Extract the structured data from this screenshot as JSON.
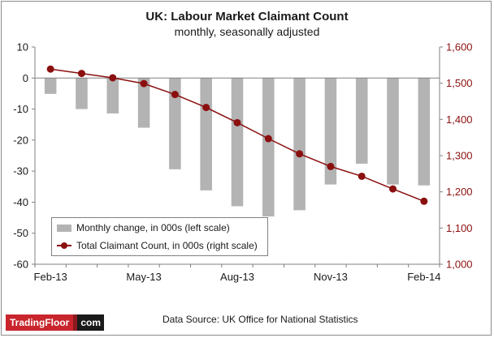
{
  "colors": {
    "bar": "#b3b3b3",
    "line": "#8b0f0f",
    "right_axis": "#8b0f0f",
    "left_axis": "#1a1a1a",
    "logo_red": "#c8252c",
    "logo_dark": "#1a1a1a"
  },
  "chart_data": {
    "type": "bar",
    "title": "UK: Labour Market Claimant Count",
    "subtitle": "monthly, seasonally adjusted",
    "x": [
      "Feb-13",
      "Mar-13",
      "Apr-13",
      "May-13",
      "Jun-13",
      "Jul-13",
      "Aug-13",
      "Sep-13",
      "Oct-13",
      "Nov-13",
      "Dec-13",
      "Jan-14",
      "Feb-14"
    ],
    "x_tick_labels": [
      "Feb-13",
      "May-13",
      "Aug-13",
      "Nov-13",
      "Feb-14"
    ],
    "series": [
      {
        "name": "Monthly change, in 000s (left scale)",
        "type": "bar",
        "axis": "left",
        "values": [
          -5.1,
          -10.0,
          -11.4,
          -16.0,
          -29.4,
          -36.2,
          -41.3,
          -44.6,
          -42.6,
          -34.3,
          -27.6,
          -34.3,
          -34.6
        ]
      },
      {
        "name": "Total Claimant Count, in 000s (right scale)",
        "type": "line",
        "axis": "right",
        "values": [
          1539,
          1527,
          1515,
          1499,
          1469,
          1433,
          1391,
          1347,
          1305,
          1270,
          1243,
          1208,
          1174
        ]
      }
    ],
    "left_axis": {
      "ylim": [
        -60,
        10
      ],
      "ticks": [
        "10",
        "0",
        "-10",
        "-20",
        "-30",
        "-40",
        "-50",
        "-60"
      ]
    },
    "right_axis": {
      "ylim": [
        1000,
        1600
      ],
      "ticks": [
        "1,600",
        "1,500",
        "1,400",
        "1,300",
        "1,200",
        "1,100",
        "1,000"
      ]
    },
    "legend": {
      "position": "bottom-left",
      "bar_label": "Monthly change, in 000s (left scale)",
      "line_label": "Total Claimant Count, in 000s (right scale)"
    },
    "grid": false
  },
  "footer": {
    "source": "Data Source: UK Office for National Statistics",
    "logo_main": "TradingFloor",
    "logo_suffix": "com"
  }
}
